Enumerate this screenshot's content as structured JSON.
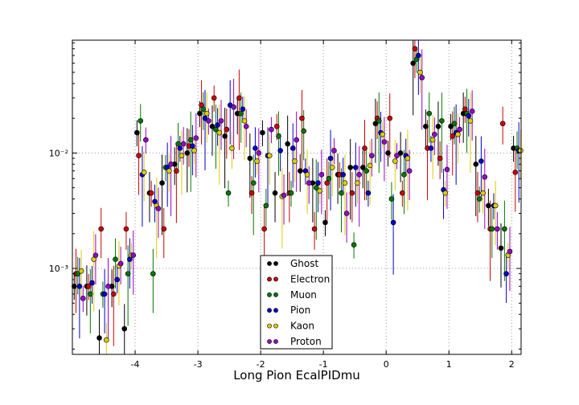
{
  "chart_data": {
    "type": "scatter",
    "title": "",
    "xlabel": "Long Pion EcalPIDmu",
    "ylabel": "",
    "xlim": [
      -5,
      2.15
    ],
    "ylim": [
      0.00018,
      0.095
    ],
    "yscale": "log",
    "grid": true,
    "legend_position": "lower-center",
    "x_ticks": [
      -4,
      -3,
      -2,
      -1,
      0,
      1,
      2
    ],
    "x_tick_labels": [
      "-4",
      "-3",
      "-2",
      "-1",
      "0",
      "1",
      "2"
    ],
    "y_ticks": [
      0.001,
      0.01
    ],
    "y_tick_labels": [
      "10⁻³",
      "10⁻²"
    ],
    "series": [
      {
        "name": "Ghost",
        "color": "#000000",
        "x": [
          -4.9,
          -4.7,
          -4.5,
          -4.3,
          -4.1,
          -3.9,
          -3.7,
          -3.5,
          -3.3,
          -3.1,
          -2.9,
          -2.7,
          -2.5,
          -2.3,
          -2.1,
          -1.9,
          -1.7,
          -1.5,
          -1.3,
          -1.1,
          -0.9,
          -0.7,
          -0.5,
          -0.3,
          -0.1,
          0.1,
          0.3,
          0.5,
          0.7,
          0.9,
          1.1,
          1.3,
          1.5,
          1.7,
          1.9,
          2.1
        ],
        "y": [
          0.0007,
          0.0007,
          0.00025,
          0.0007,
          0.0003,
          0.015,
          0.0045,
          0.0055,
          0.008,
          0.01,
          0.022,
          0.017,
          0.014,
          0.022,
          0.009,
          0.015,
          0.0045,
          0.012,
          0.007,
          0.0055,
          0.0025,
          0.0065,
          0.0075,
          0.0075,
          0.018,
          0.01,
          0.01,
          0.06,
          0.017,
          0.017,
          0.017,
          0.022,
          0.008,
          0.0035,
          0.0015,
          0.011
        ]
      },
      {
        "name": "Electron",
        "color": "#cc0000",
        "x": [
          -4.9,
          -4.7,
          -4.5,
          -4.3,
          -4.1,
          -3.9,
          -3.7,
          -3.5,
          -3.3,
          -3.1,
          -2.9,
          -2.7,
          -2.5,
          -2.3,
          -2.1,
          -1.9,
          -1.7,
          -1.5,
          -1.3,
          -1.1,
          -0.9,
          -0.7,
          -0.5,
          -0.3,
          -0.1,
          0.1,
          0.3,
          0.5,
          0.7,
          0.9,
          1.1,
          1.3,
          1.5,
          1.7,
          1.9,
          2.1
        ],
        "y": [
          0.0009,
          0.0007,
          0.0022,
          0.0006,
          0.0022,
          0.0095,
          0.0045,
          0.0022,
          0.007,
          0.0115,
          0.026,
          0.03,
          0.016,
          0.03,
          0.0045,
          0.0022,
          0.017,
          0.0045,
          0.02,
          0.0022,
          0.0055,
          0.0065,
          0.0045,
          0.011,
          0.02,
          0.02,
          0.0045,
          0.08,
          0.011,
          0.009,
          0.014,
          0.024,
          0.0045,
          0.0022,
          0.018,
          0.0068
        ]
      },
      {
        "name": "Muon",
        "color": "#007700",
        "x": [
          -4.9,
          -4.7,
          -4.5,
          -4.3,
          -4.1,
          -3.9,
          -3.7,
          -3.5,
          -3.3,
          -3.1,
          -2.9,
          -2.7,
          -2.5,
          -2.3,
          -2.1,
          -1.9,
          -1.7,
          -1.5,
          -1.3,
          -1.1,
          -0.9,
          -0.7,
          -0.5,
          -0.3,
          -0.1,
          0.1,
          0.3,
          0.5,
          0.7,
          0.9,
          1.1,
          1.3,
          1.5,
          1.7,
          1.9,
          2.1
        ],
        "y": [
          0.0009,
          0.0006,
          0.0006,
          0.0012,
          0.0009,
          0.019,
          0.0009,
          0.0075,
          0.012,
          0.013,
          0.024,
          0.016,
          0.0045,
          0.022,
          0.0055,
          0.0035,
          0.014,
          0.0045,
          0.0155,
          0.005,
          0.006,
          0.0045,
          0.0016,
          0.007,
          0.019,
          0.004,
          0.0065,
          0.065,
          0.022,
          0.019,
          0.018,
          0.022,
          0.004,
          0.0022,
          0.0022,
          0.011
        ]
      },
      {
        "name": "Pion",
        "color": "#0000cc",
        "x": [
          -4.9,
          -4.7,
          -4.5,
          -4.3,
          -4.1,
          -3.9,
          -3.7,
          -3.5,
          -3.3,
          -3.1,
          -2.9,
          -2.7,
          -2.5,
          -2.3,
          -2.1,
          -1.9,
          -1.7,
          -1.5,
          -1.3,
          -1.1,
          -0.9,
          -0.7,
          -0.5,
          -0.3,
          -0.1,
          0.1,
          0.3,
          0.5,
          0.7,
          0.9,
          1.1,
          1.3,
          1.5,
          1.7,
          1.9,
          2.1
        ],
        "y": [
          0.0007,
          0.00075,
          0.0006,
          0.0008,
          0.0012,
          0.0065,
          0.0038,
          0.0075,
          0.011,
          0.0115,
          0.02,
          0.0175,
          0.026,
          0.024,
          0.011,
          0.0095,
          0.0105,
          0.011,
          0.007,
          0.0055,
          0.009,
          0.0065,
          0.0075,
          0.0045,
          0.015,
          0.0025,
          0.0095,
          0.07,
          0.011,
          0.0048,
          0.015,
          0.021,
          0.0085,
          0.0035,
          0.0009,
          0.0105
        ]
      },
      {
        "name": "Kaon",
        "color": "#ddcc00",
        "x": [
          -4.9,
          -4.7,
          -4.5,
          -4.3,
          -4.1,
          -3.9,
          -3.7,
          -3.5,
          -3.3,
          -3.1,
          -2.9,
          -2.7,
          -2.5,
          -2.3,
          -2.1,
          -1.9,
          -1.7,
          -1.5,
          -1.3,
          -1.1,
          -0.9,
          -0.7,
          -0.5,
          -0.3,
          -0.1,
          0.1,
          0.3,
          0.5,
          0.7,
          0.9,
          1.1,
          1.3,
          1.5,
          1.7,
          1.9,
          2.1
        ],
        "y": [
          0.00095,
          0.0012,
          0.00024,
          0.00105,
          0.0013,
          0.0068,
          0.0035,
          0.007,
          0.0095,
          0.0105,
          0.022,
          0.015,
          0.011,
          0.019,
          0.0085,
          0.0095,
          0.0042,
          0.0085,
          0.0065,
          0.0047,
          0.0075,
          0.0055,
          0.0055,
          0.0078,
          0.0145,
          0.0085,
          0.009,
          0.05,
          0.013,
          0.0045,
          0.0145,
          0.019,
          0.0045,
          0.0035,
          0.0013,
          0.0105
        ]
      },
      {
        "name": "Proton",
        "color": "#9900cc",
        "x": [
          -4.9,
          -4.7,
          -4.5,
          -4.3,
          -4.1,
          -3.9,
          -3.7,
          -3.5,
          -3.3,
          -3.1,
          -2.9,
          -2.7,
          -2.5,
          -2.3,
          -2.1,
          -1.9,
          -1.7,
          -1.5,
          -1.3,
          -1.1,
          -0.9,
          -0.7,
          -0.5,
          -0.3,
          -0.1,
          0.1,
          0.3,
          0.5,
          0.7,
          0.9,
          1.1,
          1.3,
          1.5,
          1.7,
          1.9,
          2.1
        ],
        "y": [
          0.00055,
          0.0013,
          0.0007,
          0.0011,
          0.0013,
          0.013,
          0.0033,
          0.008,
          0.012,
          0.0135,
          0.019,
          0.019,
          0.025,
          0.017,
          0.01,
          0.016,
          0.0043,
          0.013,
          0.0055,
          0.0065,
          0.0105,
          0.003,
          0.0065,
          0.0095,
          0.0125,
          0.0095,
          0.007,
          0.045,
          0.0145,
          0.0072,
          0.016,
          0.023,
          0.0062,
          0.0022,
          0.0014,
          0.0095
        ]
      }
    ]
  }
}
